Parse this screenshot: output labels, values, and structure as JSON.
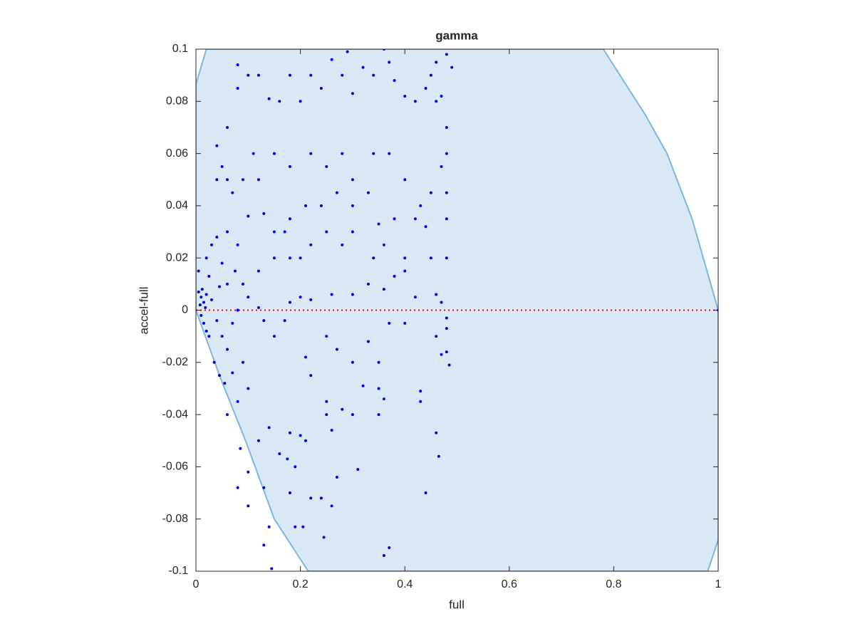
{
  "chart_data": {
    "type": "scatter",
    "title": "gamma",
    "x_label": "full",
    "y_label": "accel-full",
    "color": "#0000e6",
    "x": [
      0.005,
      0.01,
      0.012,
      0.008,
      0.015,
      0.02,
      0.005,
      0.01,
      0.015,
      0.02,
      0.025,
      0.018,
      0.03,
      0.025,
      0.02,
      0.03,
      0.04,
      0.05,
      0.06,
      0.045,
      0.04,
      0.05,
      0.06,
      0.035,
      0.045,
      0.055,
      0.07,
      0.06,
      0.08,
      0.09,
      0.1,
      0.085,
      0.1,
      0.1,
      0.08,
      0.13,
      0.13,
      0.145,
      0.14,
      0.12,
      0.14,
      0.16,
      0.175,
      0.18,
      0.2,
      0.21,
      0.19,
      0.18,
      0.19,
      0.205,
      0.22,
      0.24,
      0.245,
      0.26,
      0.27,
      0.31,
      0.36,
      0.37,
      0.44,
      0.46,
      0.465,
      0.43,
      0.43,
      0.35,
      0.36,
      0.35,
      0.32,
      0.3,
      0.28,
      0.25,
      0.25,
      0.26,
      0.22,
      0.21,
      0.25,
      0.27,
      0.3,
      0.33,
      0.35,
      0.37,
      0.4,
      0.46,
      0.47,
      0.485,
      0.48,
      0.48,
      0.48,
      0.47,
      0.46,
      0.42,
      0.38,
      0.4,
      0.33,
      0.36,
      0.3,
      0.26,
      0.22,
      0.2,
      0.18,
      0.17,
      0.15,
      0.13,
      0.12,
      0.1,
      0.08,
      0.12,
      0.15,
      0.17,
      0.18,
      0.2,
      0.22,
      0.25,
      0.28,
      0.3,
      0.34,
      0.36,
      0.4,
      0.45,
      0.48,
      0.48,
      0.48,
      0.47,
      0.48,
      0.48,
      0.46,
      0.47,
      0.45,
      0.46,
      0.48,
      0.49,
      0.44,
      0.42,
      0.4,
      0.38,
      0.37,
      0.36,
      0.34,
      0.32,
      0.3,
      0.28,
      0.29,
      0.26,
      0.24,
      0.22,
      0.2,
      0.18,
      0.16,
      0.14,
      0.12,
      0.1,
      0.08,
      0.08,
      0.06,
      0.06,
      0.05,
      0.04,
      0.04,
      0.07,
      0.09,
      0.11,
      0.12,
      0.15,
      0.18,
      0.22,
      0.25,
      0.28,
      0.3,
      0.34,
      0.37,
      0.4,
      0.43,
      0.45,
      0.44,
      0.42,
      0.38,
      0.35,
      0.33,
      0.3,
      0.27,
      0.24,
      0.21,
      0.18,
      0.15,
      0.13,
      0.1,
      0.08,
      0.06,
      0.07,
      0.09,
      0.075,
      1
    ],
    "values": [
      0.007,
      0.005,
      0.008,
      0.002,
      0.003,
      0.006,
      0.015,
      -0.002,
      -0.005,
      -0.008,
      -0.01,
      0.001,
      0.004,
      0.013,
      0.02,
      0.025,
      0.028,
      0.018,
      0.03,
      0.009,
      -0.004,
      -0.01,
      -0.015,
      -0.02,
      -0.025,
      -0.028,
      -0.024,
      -0.04,
      -0.035,
      -0.02,
      -0.03,
      -0.053,
      -0.062,
      -0.075,
      -0.068,
      -0.068,
      -0.09,
      -0.099,
      -0.083,
      -0.05,
      -0.045,
      -0.055,
      -0.057,
      -0.047,
      -0.048,
      -0.05,
      -0.06,
      -0.07,
      -0.083,
      -0.083,
      -0.072,
      -0.072,
      -0.087,
      -0.075,
      -0.064,
      -0.061,
      -0.094,
      -0.091,
      -0.07,
      -0.047,
      -0.056,
      -0.031,
      -0.035,
      -0.04,
      -0.034,
      -0.03,
      -0.029,
      -0.04,
      -0.038,
      -0.035,
      -0.04,
      -0.046,
      -0.025,
      -0.018,
      -0.01,
      -0.015,
      -0.02,
      -0.012,
      -0.02,
      -0.005,
      -0.005,
      -0.01,
      -0.017,
      -0.021,
      -0.016,
      -0.007,
      -0.003,
      0.003,
      0.006,
      0.005,
      0.013,
      0.015,
      0.01,
      0.008,
      0.006,
      0.006,
      0.004,
      0.005,
      0.003,
      -0.004,
      -0.01,
      -0.004,
      0.001,
      0.005,
      0.0,
      0.015,
      0.02,
      0.03,
      0.02,
      0.02,
      0.025,
      0.03,
      0.025,
      0.03,
      0.02,
      0.025,
      0.02,
      0.02,
      0.02,
      0.035,
      0.045,
      0.055,
      0.06,
      0.07,
      0.08,
      0.082,
      0.09,
      0.095,
      0.098,
      0.093,
      0.085,
      0.08,
      0.082,
      0.088,
      0.095,
      0.1,
      0.09,
      0.093,
      0.083,
      0.09,
      0.099,
      0.096,
      0.085,
      0.09,
      0.08,
      0.09,
      0.08,
      0.081,
      0.09,
      0.09,
      0.094,
      0.085,
      0.07,
      0.05,
      0.055,
      0.063,
      0.05,
      0.045,
      0.05,
      0.06,
      0.05,
      0.06,
      0.055,
      0.06,
      0.055,
      0.06,
      0.05,
      0.06,
      0.06,
      0.05,
      0.04,
      0.045,
      0.032,
      0.035,
      0.035,
      0.033,
      0.045,
      0.04,
      0.045,
      0.04,
      0.04,
      0.035,
      0.03,
      0.037,
      0.036,
      0.025,
      0.01,
      -0.005,
      0.01,
      0.015,
      0
    ],
    "region": {
      "fill": "#d9e8f4",
      "stroke": "#7eb6e0",
      "x": [
        0,
        0.02,
        0.78,
        0.86,
        0.902,
        0.95,
        1,
        1,
        0.98,
        0.215,
        0.15,
        0.095,
        0.045,
        0
      ],
      "y": [
        0.0866,
        0.1,
        0.1,
        0.075,
        0.06,
        0.035,
        0,
        -0.088,
        -0.1,
        -0.1,
        -0.08,
        -0.05,
        -0.025,
        0
      ]
    },
    "reference_line": {
      "value": 0,
      "color": "#ff0000"
    },
    "xlim": [
      0,
      1
    ],
    "xticks": [
      0,
      0.2,
      0.4,
      0.6,
      0.8,
      1
    ],
    "ylim": [
      -0.1,
      0.1
    ],
    "yticks": [
      -0.1,
      -0.08,
      -0.06,
      -0.04,
      -0.02,
      0,
      0.02,
      0.04,
      0.06,
      0.08,
      0.1
    ]
  }
}
